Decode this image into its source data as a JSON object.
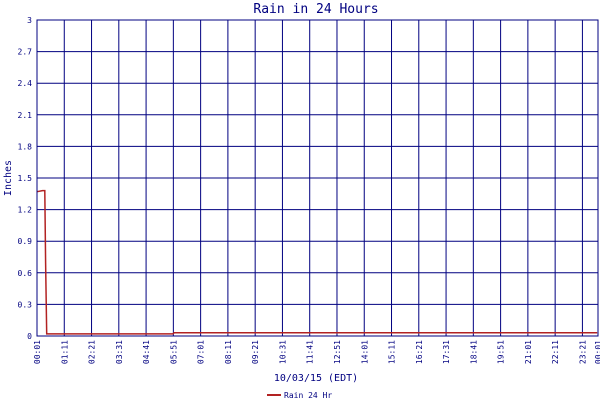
{
  "chart_data": {
    "type": "line",
    "title": "Rain in 24 Hours",
    "xlabel": "10/03/15 (EDT)",
    "ylabel": "Inches",
    "ylim": [
      0,
      3
    ],
    "yticks": [
      "0",
      "0.3",
      "0.6",
      "0.9",
      "1.2",
      "1.5",
      "1.8",
      "2.1",
      "2.4",
      "2.7",
      "3"
    ],
    "xlim": [
      "00:01",
      "00:01+1d"
    ],
    "xticks": [
      "00:01",
      "01:11",
      "02:21",
      "03:31",
      "04:41",
      "05:51",
      "07:01",
      "08:11",
      "09:21",
      "10:31",
      "11:41",
      "12:51",
      "14:01",
      "15:11",
      "16:21",
      "17:31",
      "18:41",
      "19:51",
      "21:01",
      "22:11",
      "23:21",
      "00:01"
    ],
    "grid": true,
    "legend_placement": "bottom-center",
    "colors": {
      "series": "#b22222",
      "grid": "#000080",
      "text": "#000080"
    },
    "series": [
      {
        "name": "Rain 24 Hr",
        "x": [
          "00:01",
          "00:15",
          "00:21",
          "00:23",
          "00:26",
          "05:50",
          "05:53",
          "23:59"
        ],
        "y": [
          1.37,
          1.38,
          1.38,
          0.7,
          0.02,
          0.02,
          0.03,
          0.03
        ]
      }
    ]
  }
}
